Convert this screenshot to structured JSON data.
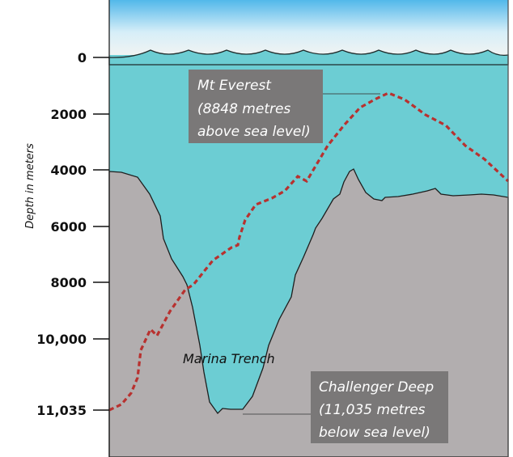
{
  "axis": {
    "title": "Depth in meters",
    "ticks": [
      "0",
      "2000",
      "4000",
      "6000",
      "8000",
      "10,000",
      "11,035"
    ]
  },
  "labels": {
    "everest": [
      "Mt Everest",
      "(8848 metres",
      "above sea level)"
    ],
    "trench": "Marina Trench",
    "challenger": [
      "Challenger Deep",
      "(11,035  metres",
      "below sea level)"
    ]
  },
  "colors": {
    "water": "#6ccdd3",
    "seafloor": "#b2aeaf",
    "everest_line": "#b8312f",
    "label_box": "#7a7878",
    "sky_top": "#52b8ea"
  }
}
